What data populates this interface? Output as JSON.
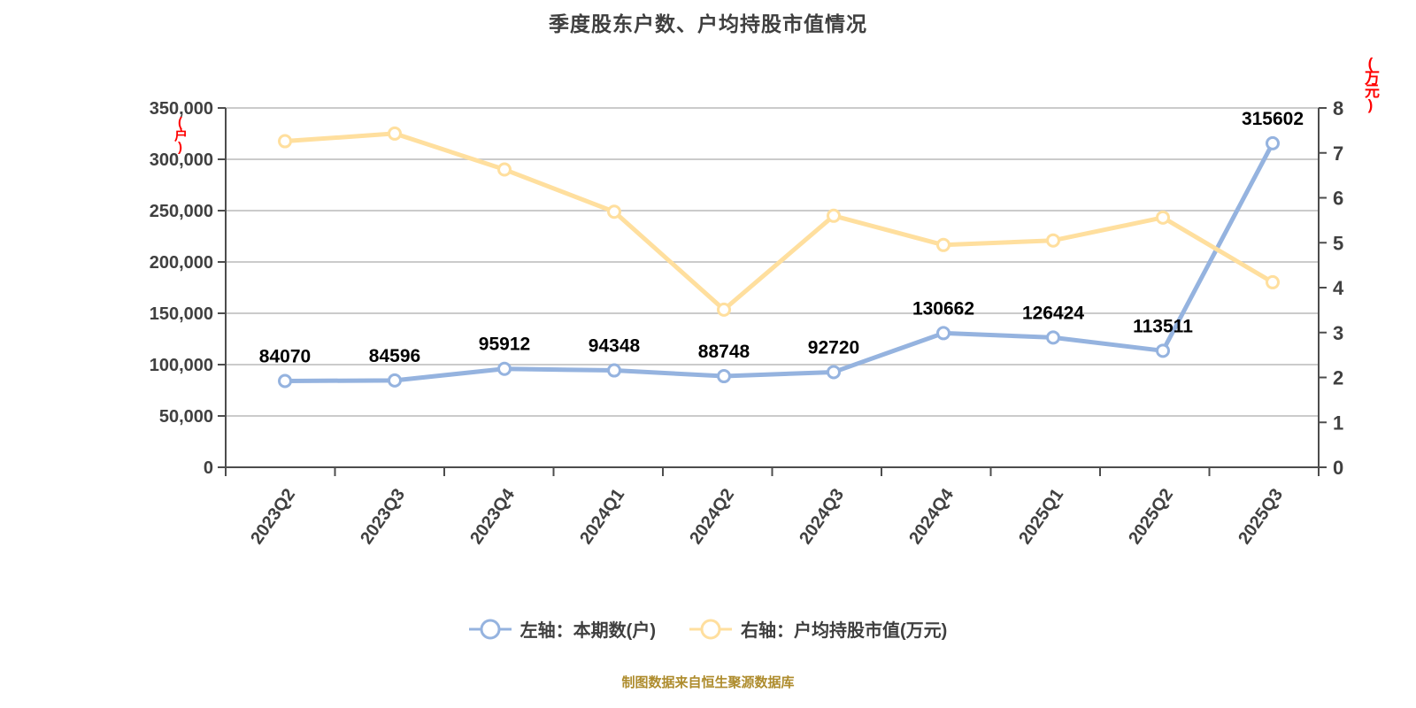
{
  "title": "季度股东户数、户均持股市值情况",
  "footer": "制图数据来自恒生聚源数据库",
  "footer_color": "#AE8C2D",
  "legend": [
    {
      "label": "左轴：本期数(户)",
      "color": "#95B3DF"
    },
    {
      "label": "右轴：户均持股市值(万元)",
      "color": "#FFDF9E"
    }
  ],
  "chart_data": {
    "type": "line",
    "title": "季度股东户数、户均持股市值情况",
    "categories": [
      "2023Q2",
      "2023Q3",
      "2023Q4",
      "2024Q1",
      "2024Q2",
      "2024Q3",
      "2024Q4",
      "2025Q1",
      "2025Q2",
      "2025Q3"
    ],
    "series": [
      {
        "name": "左轴：本期数(户)",
        "axis": "left",
        "color": "#95B3DF",
        "marker_fill": "#FFFFFF",
        "values": [
          84070,
          84596,
          95912,
          94348,
          88748,
          92720,
          130662,
          126424,
          113511,
          315602
        ],
        "show_labels": true
      },
      {
        "name": "右轴：户均持股市值(万元)",
        "axis": "right",
        "color": "#FFDF9E",
        "marker_fill": "#FFFFFF",
        "values": [
          7.26,
          7.43,
          6.63,
          5.69,
          3.51,
          5.6,
          4.95,
          5.05,
          5.56,
          4.12
        ],
        "values_note": "estimated from gridlines (no data labels shown for this series)",
        "show_labels": false
      }
    ],
    "left_axis": {
      "min": 0,
      "max": 350000,
      "step": 50000,
      "unit": "(户)",
      "unit_color": "#FF0000",
      "tick_format": "comma"
    },
    "right_axis": {
      "min": 0,
      "max": 8,
      "step": 1,
      "unit": "(万元)",
      "unit_color": "#FF0000",
      "tick_format": "plain"
    },
    "grid": true,
    "legend_position": "bottom",
    "colors": {
      "grid_line": "#CBCBCB",
      "axis_line": "#4D4D4D",
      "tick_label": "#404040",
      "data_label": "#000000"
    }
  }
}
